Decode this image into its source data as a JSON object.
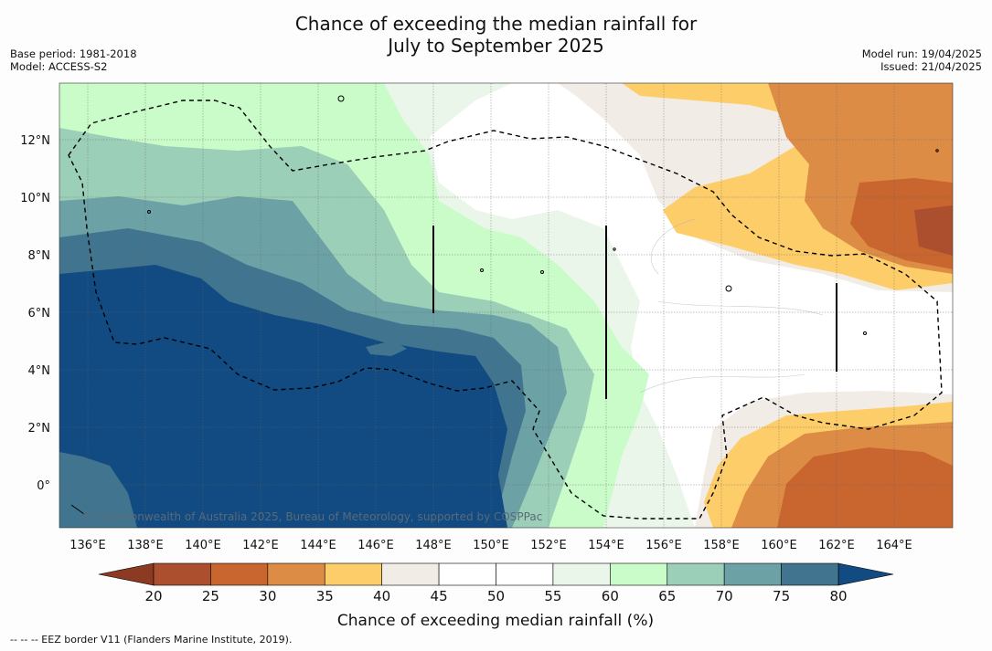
{
  "title_line1": "Chance of exceeding the median rainfall for",
  "title_line2": "July to September 2025",
  "meta_left": {
    "base_period": "Base period: 1981-2018",
    "model": "Model: ACCESS-S2"
  },
  "meta_right": {
    "model_run": "Model run: 19/04/2025",
    "issued": "Issued: 21/04/2025"
  },
  "longitude_labels": [
    "136°E",
    "138°E",
    "140°E",
    "142°E",
    "144°E",
    "146°E",
    "148°E",
    "150°E",
    "152°E",
    "154°E",
    "156°E",
    "158°E",
    "160°E",
    "162°E",
    "164°E"
  ],
  "latitude_labels": [
    "12°N",
    "10°N",
    "8°N",
    "6°N",
    "4°N",
    "2°N",
    "0°"
  ],
  "copyright": "© Commonwealth of Australia 2025, Bureau of Meteorology, supported by COSPPac",
  "colorbar": {
    "title": "Chance of exceeding median rainfall (%)",
    "ticks": [
      "20",
      "25",
      "30",
      "35",
      "40",
      "45",
      "50",
      "55",
      "60",
      "65",
      "70",
      "75",
      "80"
    ],
    "colors": [
      "#ac4f2e",
      "#c9652f",
      "#dd8c45",
      "#fdcd69",
      "#f2ece6",
      "#ffffff",
      "#ffffff",
      "#ebf6ea",
      "#c9fcc8",
      "#9ccfb8",
      "#6ca2a6",
      "#41758f"
    ],
    "under_color": "#8c3b22",
    "over_color": "#124a82"
  },
  "eez_note": "--  --  -- EEZ border V11 (Flanders Marine Institute, 2019)."
}
